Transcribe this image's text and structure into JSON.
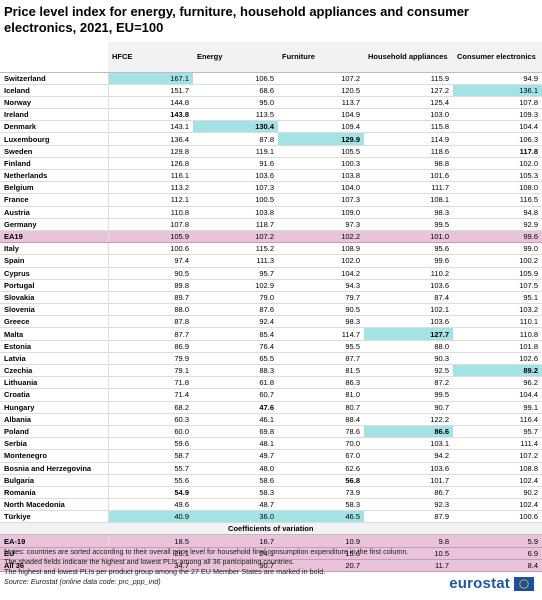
{
  "title": "Price level index for energy, furniture, household appliances and consumer electronics, 2021, EU=100",
  "chart_data": {
    "type": "table",
    "columns": [
      "",
      "HFCE",
      "Energy",
      "Furniture",
      "Household appliances",
      "Consumer electronics"
    ],
    "rows": [
      {
        "name": "Switzerland",
        "values": [
          "167.1",
          "106.5",
          "107.2",
          "115.9",
          "94.9"
        ],
        "hl": [
          0
        ],
        "bold": []
      },
      {
        "name": "Iceland",
        "values": [
          "151.7",
          "68.6",
          "120.5",
          "127.2",
          "136.1"
        ],
        "hl": [
          4
        ],
        "bold": []
      },
      {
        "name": "Norway",
        "values": [
          "144.8",
          "95.0",
          "113.7",
          "125.4",
          "107.8"
        ],
        "hl": [],
        "bold": []
      },
      {
        "name": "Ireland",
        "values": [
          "143.8",
          "113.5",
          "104.9",
          "103.0",
          "109.3"
        ],
        "hl": [],
        "bold": [
          0
        ]
      },
      {
        "name": "Denmark",
        "values": [
          "143.1",
          "130.4",
          "109.4",
          "115.8",
          "104.4"
        ],
        "hl": [
          1
        ],
        "bold": [
          1
        ]
      },
      {
        "name": "Luxembourg",
        "values": [
          "136.4",
          "87.8",
          "129.9",
          "114.9",
          "106.3"
        ],
        "hl": [
          2
        ],
        "bold": [
          2
        ]
      },
      {
        "name": "Sweden",
        "values": [
          "129.8",
          "119.1",
          "105.5",
          "118.6",
          "117.8"
        ],
        "hl": [],
        "bold": [
          4
        ]
      },
      {
        "name": "Finland",
        "values": [
          "126.8",
          "91.6",
          "100.3",
          "98.8",
          "102.0"
        ],
        "hl": [],
        "bold": []
      },
      {
        "name": "Netherlands",
        "values": [
          "116.1",
          "103.6",
          "103.8",
          "101.6",
          "105.3"
        ],
        "hl": [],
        "bold": []
      },
      {
        "name": "Belgium",
        "values": [
          "113.2",
          "107.3",
          "104.0",
          "111.7",
          "108.0"
        ],
        "hl": [],
        "bold": []
      },
      {
        "name": "France",
        "values": [
          "112.1",
          "100.5",
          "107.3",
          "108.1",
          "116.5"
        ],
        "hl": [],
        "bold": []
      },
      {
        "name": "Austria",
        "values": [
          "110.8",
          "103.8",
          "109.0",
          "98.3",
          "94.8"
        ],
        "hl": [],
        "bold": []
      },
      {
        "name": "Germany",
        "values": [
          "107.8",
          "118.7",
          "97.3",
          "99.5",
          "92.9"
        ],
        "hl": [],
        "bold": []
      },
      {
        "name": "EA19",
        "values": [
          "105.9",
          "107.2",
          "102.2",
          "101.0",
          "99.6"
        ],
        "hl": [],
        "bold": [],
        "agg": true
      },
      {
        "name": "Italy",
        "values": [
          "100.6",
          "115.2",
          "108.9",
          "95.6",
          "99.0"
        ],
        "hl": [],
        "bold": []
      },
      {
        "name": "Spain",
        "values": [
          "97.4",
          "111.3",
          "102.0",
          "99.6",
          "100.2"
        ],
        "hl": [],
        "bold": []
      },
      {
        "name": "Cyprus",
        "values": [
          "90.5",
          "95.7",
          "104.2",
          "110.2",
          "105.9"
        ],
        "hl": [],
        "bold": []
      },
      {
        "name": "Portugal",
        "values": [
          "89.8",
          "102.9",
          "94.3",
          "103.6",
          "107.5"
        ],
        "hl": [],
        "bold": []
      },
      {
        "name": "Slovakia",
        "values": [
          "89.7",
          "79.0",
          "79.7",
          "87.4",
          "95.1"
        ],
        "hl": [],
        "bold": []
      },
      {
        "name": "Slovenia",
        "values": [
          "88.0",
          "87.6",
          "90.5",
          "102.1",
          "103.2"
        ],
        "hl": [],
        "bold": []
      },
      {
        "name": "Greece",
        "values": [
          "87.8",
          "92.4",
          "98.3",
          "103.6",
          "110.1"
        ],
        "hl": [],
        "bold": []
      },
      {
        "name": "Malta",
        "values": [
          "87.7",
          "85.4",
          "114.7",
          "127.7",
          "110.8"
        ],
        "hl": [
          3
        ],
        "bold": [
          3
        ]
      },
      {
        "name": "Estonia",
        "values": [
          "86.9",
          "76.4",
          "95.5",
          "88.0",
          "101.8"
        ],
        "hl": [],
        "bold": []
      },
      {
        "name": "Latvia",
        "values": [
          "79.9",
          "65.5",
          "87.7",
          "90.3",
          "102.6"
        ],
        "hl": [],
        "bold": []
      },
      {
        "name": "Czechia",
        "values": [
          "79.1",
          "88.3",
          "81.5",
          "92.5",
          "89.2"
        ],
        "hl": [
          4
        ],
        "bold": [
          4
        ]
      },
      {
        "name": "Lithuania",
        "values": [
          "71.8",
          "61.8",
          "86.3",
          "87.2",
          "96.2"
        ],
        "hl": [],
        "bold": []
      },
      {
        "name": "Croatia",
        "values": [
          "71.4",
          "60.7",
          "81.0",
          "99.5",
          "104.4"
        ],
        "hl": [],
        "bold": []
      },
      {
        "name": "Hungary",
        "values": [
          "68.2",
          "47.6",
          "80.7",
          "90.7",
          "99.1"
        ],
        "hl": [],
        "bold": [
          1
        ]
      },
      {
        "name": "Albania",
        "values": [
          "60.3",
          "46.1",
          "88.4",
          "122.2",
          "116.4"
        ],
        "hl": [],
        "bold": []
      },
      {
        "name": "Poland",
        "values": [
          "60.0",
          "69.8",
          "78.6",
          "86.6",
          "95.7"
        ],
        "hl": [
          3
        ],
        "bold": [
          3
        ]
      },
      {
        "name": "Serbia",
        "values": [
          "59.6",
          "48.1",
          "70.0",
          "103.1",
          "111.4"
        ],
        "hl": [],
        "bold": []
      },
      {
        "name": "Montenegro",
        "values": [
          "58.7",
          "49.7",
          "67.0",
          "94.2",
          "107.2"
        ],
        "hl": [],
        "bold": []
      },
      {
        "name": "Bosnia and Herzegovina",
        "values": [
          "55.7",
          "48.0",
          "62.6",
          "103.6",
          "108.8"
        ],
        "hl": [],
        "bold": []
      },
      {
        "name": "Bulgaria",
        "values": [
          "55.6",
          "58.6",
          "56.8",
          "101.7",
          "102.4"
        ],
        "hl": [],
        "bold": [
          2
        ]
      },
      {
        "name": "Romania",
        "values": [
          "54.9",
          "58.3",
          "73.9",
          "86.7",
          "90.2"
        ],
        "hl": [],
        "bold": [
          0
        ]
      },
      {
        "name": "North Macedonia",
        "values": [
          "49.6",
          "48.7",
          "58.3",
          "92.3",
          "102.4"
        ],
        "hl": [],
        "bold": []
      },
      {
        "name": "Türkiye",
        "values": [
          "40.9",
          "36.0",
          "46.5",
          "87.9",
          "100.6"
        ],
        "hl": [
          0,
          1,
          2
        ],
        "bold": []
      }
    ],
    "cv_header": "Coefficients of variation",
    "cv_rows": [
      {
        "name": "EA-19",
        "values": [
          "18.5",
          "16.7",
          "10.9",
          "9.8",
          "5.9"
        ]
      },
      {
        "name": "EU",
        "values": [
          "26.1",
          "24.1",
          "15.6",
          "10.5",
          "6.9"
        ]
      },
      {
        "name": "All 36",
        "values": [
          "34.7",
          "30.7",
          "20.7",
          "11.7",
          "8.4"
        ]
      }
    ]
  },
  "notes": {
    "line1": "Notes: countries are sorted according to their overall price level for household final consumption expenditure in the first column.",
    "line2": "The shaded fields indicate the highest and lowest PLIs among all 36 participating countries.",
    "line3": "The highest and lowest PLIs per product group among the 27 EU Member States are marked in bold.",
    "source": "Source: Eurostat (online data code: prc_ppp_ind)"
  },
  "brand": {
    "name": "eurostat",
    "icon": "eu-flag-icon",
    "flag_color": "#1c4fa0",
    "star_color": "#ffdd00"
  },
  "colors": {
    "highlight": "#a3e3e5",
    "aggregate": "#e9c3da",
    "header": "#f2f2f2"
  }
}
